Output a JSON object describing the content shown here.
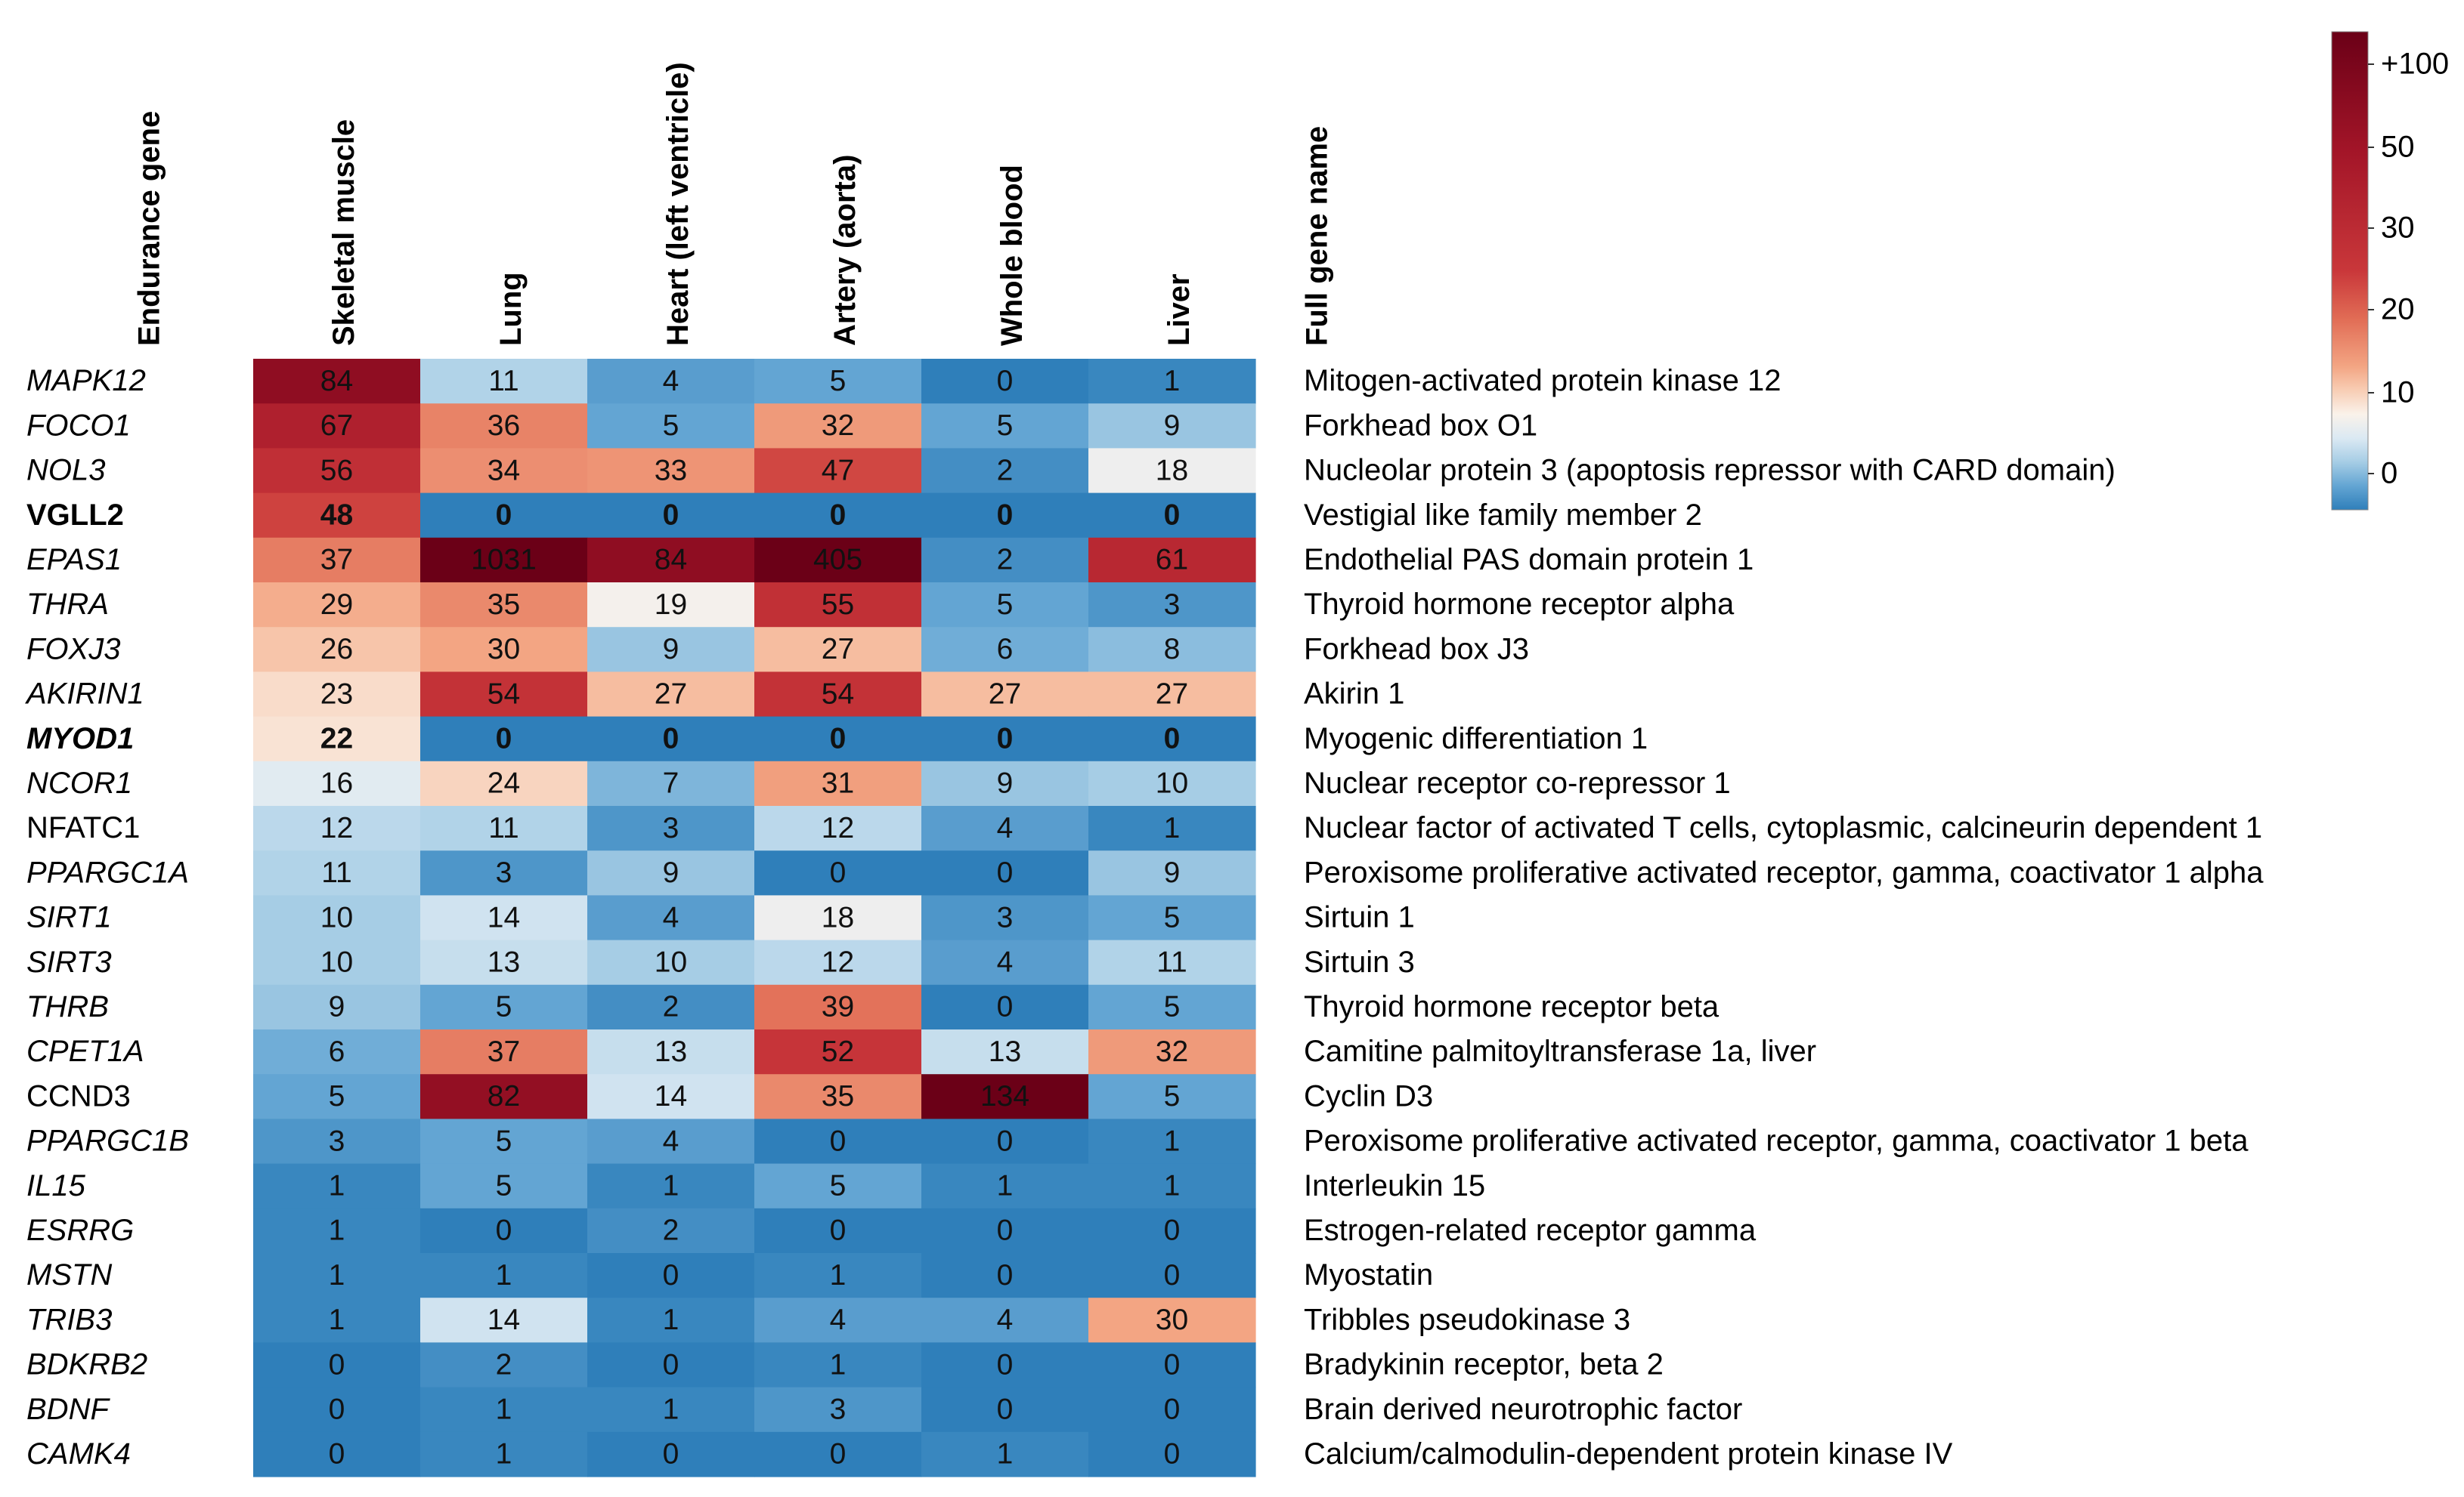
{
  "chart_data": {
    "type": "heatmap",
    "title": "",
    "gene_header": "Endurance gene",
    "fullname_header": "Full gene name",
    "columns": [
      "Skeletal muscle",
      "Lung",
      "Heart (left ventricle)",
      "Artery (aorta)",
      "Whole blood",
      "Liver"
    ],
    "rows": [
      {
        "gene": "MAPK12",
        "style": "italic",
        "values": [
          84,
          11,
          4,
          5,
          0,
          1
        ],
        "full_name": "Mitogen-activated protein kinase 12"
      },
      {
        "gene": "FOCO1",
        "style": "italic",
        "values": [
          67,
          36,
          5,
          32,
          5,
          9
        ],
        "full_name": "Forkhead box O1"
      },
      {
        "gene": "NOL3",
        "style": "italic",
        "values": [
          56,
          34,
          33,
          47,
          2,
          18
        ],
        "full_name": "Nucleolar protein 3 (apoptosis repressor with CARD domain)"
      },
      {
        "gene": "VGLL2",
        "style": "bold",
        "values": [
          48,
          0,
          0,
          0,
          0,
          0
        ],
        "full_name": "Vestigial like family member 2"
      },
      {
        "gene": "EPAS1",
        "style": "italic",
        "values": [
          37,
          1031,
          84,
          405,
          2,
          61
        ],
        "full_name": "Endothelial PAS domain protein 1"
      },
      {
        "gene": "THRA",
        "style": "italic",
        "values": [
          29,
          35,
          19,
          55,
          5,
          3
        ],
        "full_name": "Thyroid hormone receptor alpha"
      },
      {
        "gene": "FOXJ3",
        "style": "italic",
        "values": [
          26,
          30,
          9,
          27,
          6,
          8
        ],
        "full_name": "Forkhead box J3"
      },
      {
        "gene": "AKIRIN1",
        "style": "italic",
        "values": [
          23,
          54,
          27,
          54,
          27,
          27
        ],
        "full_name": "Akirin 1"
      },
      {
        "gene": "MYOD1",
        "style": "bold italic",
        "values": [
          22,
          0,
          0,
          0,
          0,
          0
        ],
        "full_name": "Myogenic differentiation 1"
      },
      {
        "gene": "NCOR1",
        "style": "italic",
        "values": [
          16,
          24,
          7,
          31,
          9,
          10
        ],
        "full_name": "Nuclear receptor co-repressor 1"
      },
      {
        "gene": "NFATC1",
        "style": "normal",
        "values": [
          12,
          11,
          3,
          12,
          4,
          1
        ],
        "full_name": "Nuclear factor of activated T cells, cytoplasmic, calcineurin dependent 1"
      },
      {
        "gene": "PPARGC1A",
        "style": "italic",
        "values": [
          11,
          3,
          9,
          0,
          0,
          9
        ],
        "full_name": "Peroxisome proliferative activated receptor, gamma, coactivator 1 alpha"
      },
      {
        "gene": "SIRT1",
        "style": "italic",
        "values": [
          10,
          14,
          4,
          18,
          3,
          5
        ],
        "full_name": "Sirtuin 1"
      },
      {
        "gene": "SIRT3",
        "style": "italic",
        "values": [
          10,
          13,
          10,
          12,
          4,
          11
        ],
        "full_name": "Sirtuin 3"
      },
      {
        "gene": "THRB",
        "style": "italic",
        "values": [
          9,
          5,
          2,
          39,
          0,
          5
        ],
        "full_name": "Thyroid hormone receptor beta"
      },
      {
        "gene": "CPET1A",
        "style": "italic",
        "values": [
          6,
          37,
          13,
          52,
          13,
          32
        ],
        "full_name": "Camitine palmitoyltransferase 1a, liver"
      },
      {
        "gene": "CCND3",
        "style": "normal",
        "values": [
          5,
          82,
          14,
          35,
          134,
          5
        ],
        "full_name": "Cyclin D3"
      },
      {
        "gene": "PPARGC1B",
        "style": "italic",
        "values": [
          3,
          5,
          4,
          0,
          0,
          1
        ],
        "full_name": "Peroxisome proliferative activated receptor, gamma, coactivator 1 beta"
      },
      {
        "gene": "IL15",
        "style": "italic",
        "values": [
          1,
          5,
          1,
          5,
          1,
          1
        ],
        "full_name": "Interleukin 15"
      },
      {
        "gene": "ESRRG",
        "style": "italic",
        "values": [
          1,
          0,
          2,
          0,
          0,
          0
        ],
        "full_name": "Estrogen-related receptor gamma"
      },
      {
        "gene": "MSTN",
        "style": "italic",
        "values": [
          1,
          1,
          0,
          1,
          0,
          0
        ],
        "full_name": "Myostatin"
      },
      {
        "gene": "TRIB3",
        "style": "italic",
        "values": [
          1,
          14,
          1,
          4,
          4,
          30
        ],
        "full_name": "Tribbles pseudokinase 3"
      },
      {
        "gene": "BDKRB2",
        "style": "italic",
        "values": [
          0,
          2,
          0,
          1,
          0,
          0
        ],
        "full_name": "Bradykinin receptor, beta 2"
      },
      {
        "gene": "BDNF",
        "style": "italic",
        "values": [
          0,
          1,
          1,
          3,
          0,
          0
        ],
        "full_name": "Brain derived neurotrophic factor"
      },
      {
        "gene": "CAMK4",
        "style": "italic",
        "values": [
          0,
          1,
          0,
          0,
          1,
          0
        ],
        "full_name": "Calcium/calmodulin-dependent protein kinase IV"
      }
    ],
    "bold_zero_rows": [
      "VGLL2",
      "MYOD1"
    ],
    "colorbar": {
      "ticks": [
        {
          "value": 100,
          "label": "+100"
        },
        {
          "value": 50,
          "label": "50"
        },
        {
          "value": 30,
          "label": "30"
        },
        {
          "value": 20,
          "label": "20"
        },
        {
          "value": 10,
          "label": "10"
        },
        {
          "value": 0,
          "label": "0"
        }
      ],
      "range": [
        0,
        100
      ],
      "stops": [
        {
          "value": 0,
          "color": "#2f7fba"
        },
        {
          "value": 5,
          "color": "#63a5d3"
        },
        {
          "value": 10,
          "color": "#a6cde5"
        },
        {
          "value": 15,
          "color": "#dbe9f3"
        },
        {
          "value": 20,
          "color": "#faf2ea"
        },
        {
          "value": 25,
          "color": "#f8cdb4"
        },
        {
          "value": 30,
          "color": "#f3a583"
        },
        {
          "value": 40,
          "color": "#e16c55"
        },
        {
          "value": 50,
          "color": "#c9373a"
        },
        {
          "value": 75,
          "color": "#a31528"
        },
        {
          "value": 100,
          "color": "#6b0017"
        }
      ]
    }
  }
}
